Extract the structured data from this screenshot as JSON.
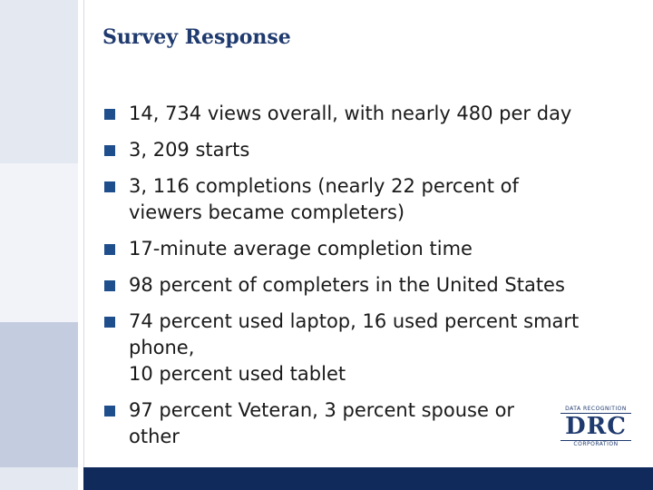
{
  "slide": {
    "title": "Survey Response",
    "bullets": [
      "14, 734 views overall, with nearly 480 per day",
      "3, 209 starts",
      "3, 116 completions (nearly 22 percent of\nviewers became completers)",
      "17-minute average completion time",
      "98 percent of completers in the United States",
      "74 percent used laptop, 16 used percent smart\nphone,\n10 percent used tablet",
      "97 percent Veteran,  3 percent  spouse or\nother"
    ]
  },
  "logo": {
    "top_text": "DATA RECOGNITION",
    "mark": "DRC",
    "bottom_text": "CORPORATION"
  },
  "colors": {
    "title": "#1f3a6e",
    "bullet_marker": "#1f4e8c",
    "strip_light": "#e3e8f1",
    "strip_mid": "#c4cde0",
    "bar_dark": "#102a5c"
  }
}
